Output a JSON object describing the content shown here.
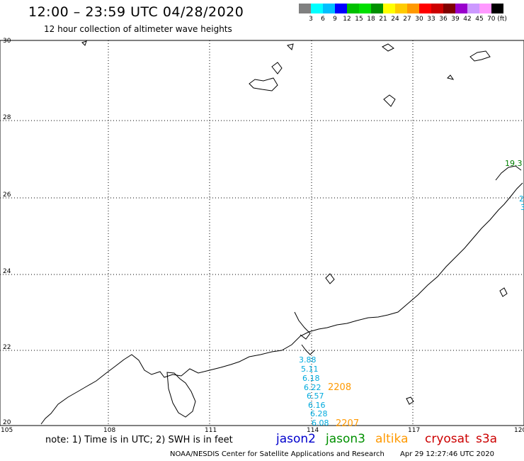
{
  "header": {
    "title": "12:00 – 23:59 UTC 04/28/2020",
    "subtitle": "12 hour collection of altimeter wave heights"
  },
  "colorbar": {
    "colors": [
      "#808080",
      "#00ffff",
      "#00bfff",
      "#0000ff",
      "#00c000",
      "#00e000",
      "#009000",
      "#ffff00",
      "#ffcc00",
      "#ff9900",
      "#ff0000",
      "#cc0000",
      "#800000",
      "#9900cc",
      "#cc99ff",
      "#ff99ff",
      "#000000"
    ],
    "labels": [
      "3",
      "6",
      "9",
      "12",
      "15",
      "18",
      "21",
      "24",
      "27",
      "30",
      "33",
      "36",
      "39",
      "42",
      "45",
      "70 (ft)"
    ]
  },
  "map": {
    "lon_ticks": [
      "105",
      "108",
      "111",
      "114",
      "117",
      "120"
    ],
    "lat_ticks": [
      "20",
      "22",
      "24",
      "26",
      "28",
      "30"
    ],
    "measurements": [
      {
        "text": "3.88",
        "color": "#00aadd"
      },
      {
        "text": "5.11",
        "color": "#00aadd"
      },
      {
        "text": "6.18",
        "color": "#00aadd"
      },
      {
        "text": "6.22",
        "color": "#00aadd"
      },
      {
        "text": "6.57",
        "color": "#00aadd"
      },
      {
        "text": "6.16",
        "color": "#00aadd"
      },
      {
        "text": "6.28",
        "color": "#00aadd"
      },
      {
        "text": "6.08",
        "color": "#00aadd"
      },
      {
        "text": "19.3",
        "color": "#008000"
      },
      {
        "text": "2",
        "color": "#00aadd"
      },
      {
        "text": "3",
        "color": "#00aadd"
      }
    ],
    "passes": [
      {
        "text": "2208",
        "color": "#ff9900"
      },
      {
        "text": "2207",
        "color": "#ff9900"
      }
    ]
  },
  "footer": {
    "note": "note:  1) Time is in UTC;  2) SWH is in feet",
    "legend": [
      {
        "label": "jason2",
        "color": "#0000cc"
      },
      {
        "label": "jason3",
        "color": "#009000"
      },
      {
        "label": "altika",
        "color": "#ff9900"
      },
      {
        "label": "cryosat",
        "color": "#cc0000"
      },
      {
        "label": "s3a",
        "color": "#cc0000"
      }
    ],
    "credit": "NOAA/NESDIS Center for Satellite Applications and Research",
    "timestamp": "Apr 29 12:27:46 UTC 2020"
  }
}
